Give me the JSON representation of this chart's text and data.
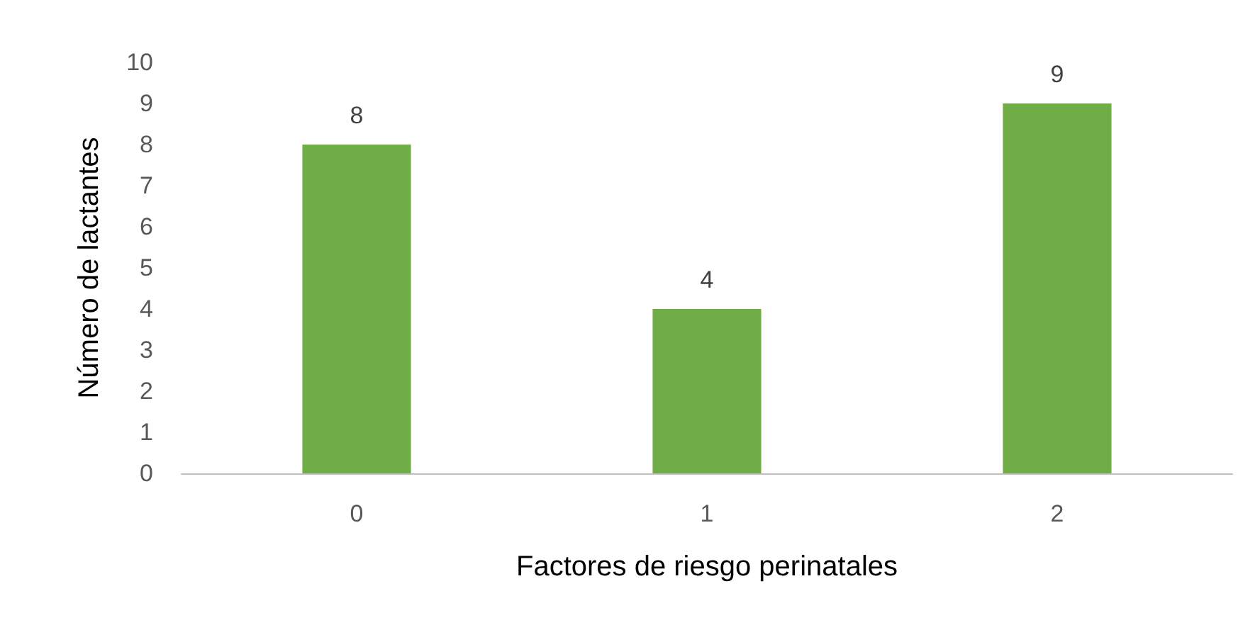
{
  "chart_data": {
    "type": "bar",
    "xlabel": "Factores de riesgo perinatales",
    "ylabel": "Número de lactantes",
    "categories": [
      "0",
      "1",
      "2"
    ],
    "values": [
      8,
      4,
      9
    ],
    "color": "#70ad47",
    "ylim": [
      0,
      10
    ],
    "yticks": [
      0,
      1,
      2,
      3,
      4,
      5,
      6,
      7,
      8,
      9,
      10
    ],
    "grid": false,
    "data_labels": true
  }
}
